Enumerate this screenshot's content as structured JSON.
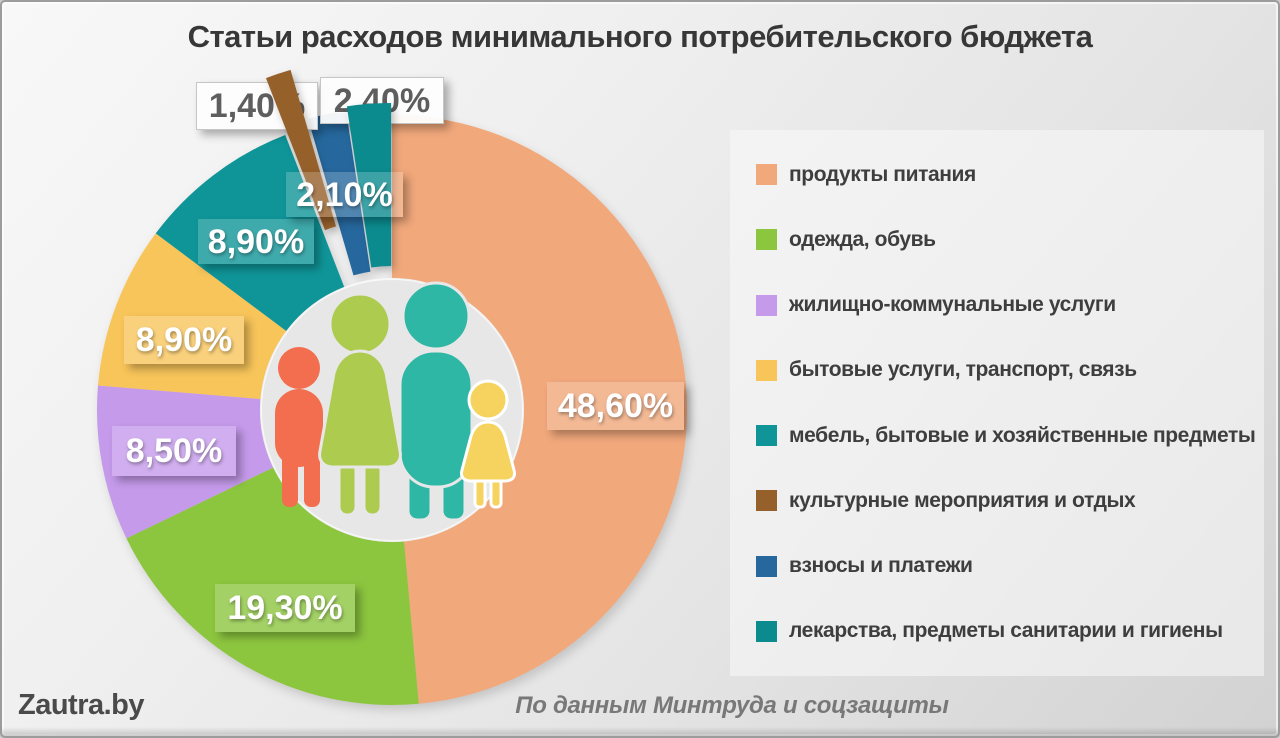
{
  "frame": {
    "title": "Статьи расходов минимального потребительского бюджета"
  },
  "footer": {
    "watermark": "Zautra.by",
    "source": "По данным Минтруда и соцзащиты"
  },
  "chart_data": {
    "type": "pie",
    "subtype": "donut",
    "title": "Статьи расходов минимального потребительского бюджета",
    "start_angle_deg": 0,
    "direction": "clockwise",
    "legend_position": "right",
    "center_icon": "family-pictogram",
    "number_format": "comma-decimal-percent",
    "segments": [
      {
        "id": "food",
        "label": "продукты питания",
        "value": 48.6,
        "value_label": "48,60%",
        "color": "#F1A87B",
        "exploded": false
      },
      {
        "id": "clothing",
        "label": "одежда, обувь",
        "value": 19.3,
        "value_label": "19,30%",
        "color": "#8CC63F",
        "exploded": false
      },
      {
        "id": "housing",
        "label": "жилищно-коммунальные услуги",
        "value": 8.5,
        "value_label": "8,50%",
        "color": "#C59AEB",
        "exploded": false
      },
      {
        "id": "services",
        "label": "бытовые услуги, транспорт, связь",
        "value": 8.9,
        "value_label": "8,90%",
        "color": "#F8C55A",
        "exploded": false
      },
      {
        "id": "furniture",
        "label": "мебель, бытовые и хозяйственные предметы",
        "value": 8.9,
        "value_label": "8,90%",
        "color": "#0F9598",
        "exploded": false
      },
      {
        "id": "culture",
        "label": "культурные мероприятия и отдых",
        "value": 1.4,
        "value_label": "1,40%",
        "color": "#96602A",
        "exploded": true
      },
      {
        "id": "payments",
        "label": "взносы и платежи",
        "value": 2.1,
        "value_label": "2,10%",
        "color": "#26689E",
        "exploded": true
      },
      {
        "id": "medicine",
        "label": "лекарства, предметы санитарии и гигиены",
        "value": 2.4,
        "value_label": "2,40%",
        "color": "#0C8B8F",
        "exploded": true
      }
    ],
    "family_icon_colors": {
      "adult_small": "#F26E4E",
      "woman": "#ACCB4F",
      "man": "#2FB7A6",
      "girl": "#F6D35E"
    }
  }
}
